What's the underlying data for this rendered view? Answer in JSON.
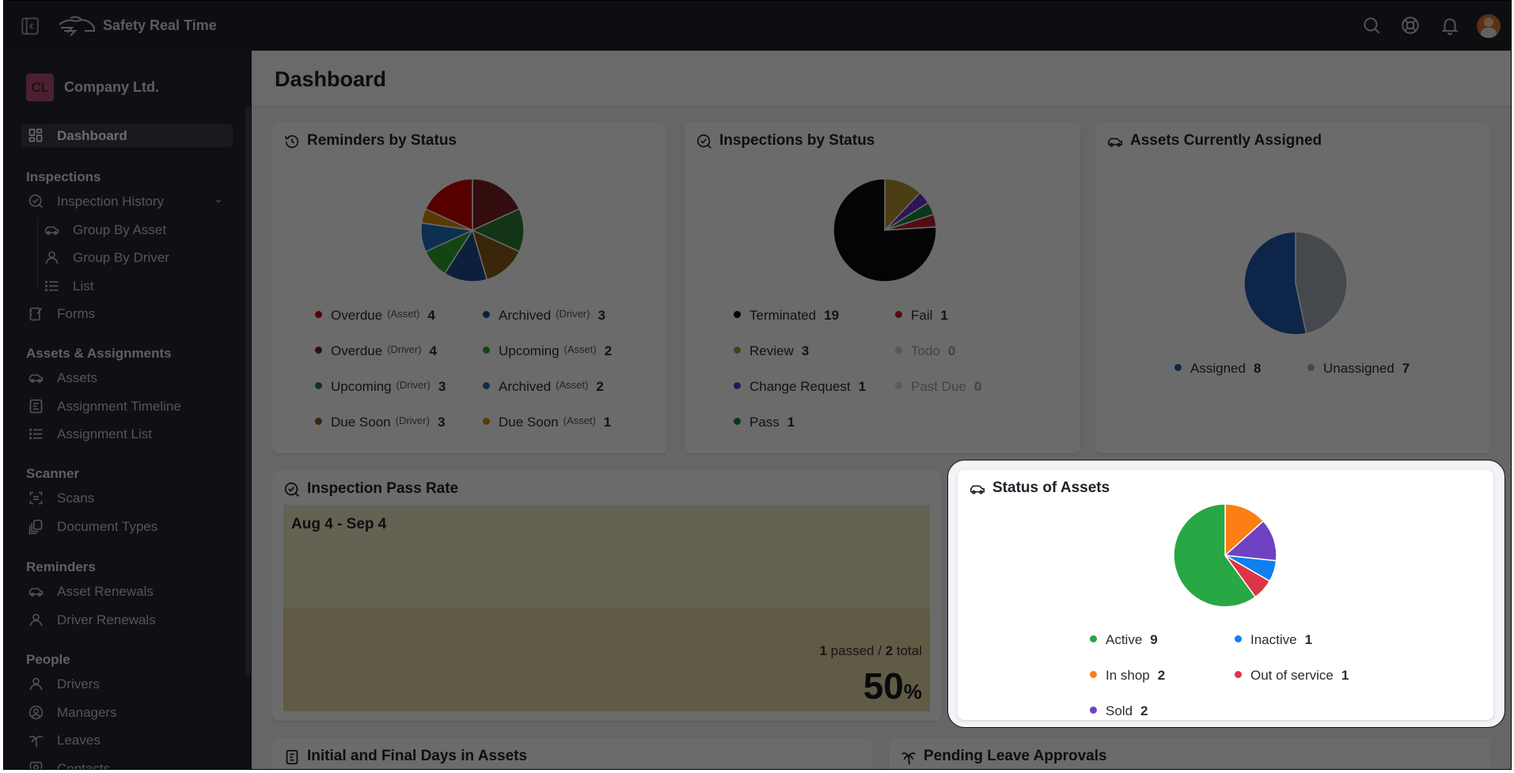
{
  "header": {
    "app_title": "Safety Real Time",
    "icons": [
      "sidebar-collapse-icon",
      "logo",
      "search-icon",
      "help-lifebuoy-icon",
      "bell-icon",
      "avatar"
    ]
  },
  "sidebar": {
    "company": {
      "initials": "CL",
      "name": "Company Ltd."
    },
    "dashboard": {
      "label": "Dashboard",
      "icon": "dashboard-grid-icon"
    },
    "sections": [
      {
        "heading": "Inspections",
        "items": [
          {
            "label": "Inspection History",
            "icon": "inspection-check-icon",
            "expandable": true
          },
          {
            "label": "Group By Asset",
            "icon": "car-icon",
            "sub": true
          },
          {
            "label": "Group By Driver",
            "icon": "user-icon",
            "sub": true
          },
          {
            "label": "List",
            "icon": "list-icon",
            "sub": true
          },
          {
            "label": "Forms",
            "icon": "form-edit-icon"
          }
        ]
      },
      {
        "heading": "Assets & Assignments",
        "items": [
          {
            "label": "Assets",
            "icon": "car-icon"
          },
          {
            "label": "Assignment Timeline",
            "icon": "timeline-icon"
          },
          {
            "label": "Assignment List",
            "icon": "list-icon"
          }
        ]
      },
      {
        "heading": "Scanner",
        "items": [
          {
            "label": "Scans",
            "icon": "scan-icon"
          },
          {
            "label": "Document Types",
            "icon": "documents-icon"
          }
        ]
      },
      {
        "heading": "Reminders",
        "items": [
          {
            "label": "Asset Renewals",
            "icon": "car-icon"
          },
          {
            "label": "Driver Renewals",
            "icon": "user-icon"
          }
        ]
      },
      {
        "heading": "People",
        "items": [
          {
            "label": "Drivers",
            "icon": "user-icon"
          },
          {
            "label": "Managers",
            "icon": "user-circle-icon"
          },
          {
            "label": "Leaves",
            "icon": "palm-tree-icon"
          },
          {
            "label": "Contacts",
            "icon": "contact-icon"
          }
        ]
      }
    ]
  },
  "main": {
    "title": "Dashboard",
    "pass_rate": {
      "title": "Inspection Pass Rate",
      "range": "Aug 4 - Sep 4",
      "passed": "1",
      "passed_label": "passed /",
      "total": "2",
      "total_label": "total",
      "percent": "50",
      "percent_sign": "%",
      "fill_fraction": 0.5
    },
    "bottom_cards": [
      "Initial and Final Days in Assets",
      "Pending Leave Approvals"
    ]
  },
  "chart_data": [
    {
      "type": "pie",
      "title": "Reminders by Status",
      "icon": "history-icon",
      "slices": [
        {
          "label": "Overdue",
          "qualifier": "(Asset)",
          "value": 4,
          "color": "#cc0000"
        },
        {
          "label": "Overdue",
          "qualifier": "(Driver)",
          "value": 4,
          "color": "#7a2020"
        },
        {
          "label": "Upcoming",
          "qualifier": "(Driver)",
          "value": 3,
          "color": "#2e7d32"
        },
        {
          "label": "Due Soon",
          "qualifier": "(Driver)",
          "value": 3,
          "color": "#8a5a16"
        },
        {
          "label": "Archived",
          "qualifier": "(Driver)",
          "value": 3,
          "color": "#1e4d8c"
        },
        {
          "label": "Upcoming",
          "qualifier": "(Asset)",
          "value": 2,
          "color": "#2ea52e"
        },
        {
          "label": "Archived",
          "qualifier": "(Asset)",
          "value": 2,
          "color": "#1c70c4"
        },
        {
          "label": "Due Soon",
          "qualifier": "(Asset)",
          "value": 1,
          "color": "#d48a0a"
        }
      ]
    },
    {
      "type": "pie",
      "title": "Inspections by Status",
      "icon": "inspection-check-icon",
      "slices": [
        {
          "label": "Terminated",
          "value": 19,
          "color": "#0a0a0a"
        },
        {
          "label": "Review",
          "value": 3,
          "color": "#b39430"
        },
        {
          "label": "Change Request",
          "value": 1,
          "color": "#6a2fcc"
        },
        {
          "label": "Pass",
          "value": 1,
          "color": "#148a3c"
        },
        {
          "label": "Fail",
          "value": 1,
          "color": "#c41f2a"
        },
        {
          "label": "Todo",
          "value": 0,
          "color": "#9a9a9a"
        },
        {
          "label": "Past Due",
          "value": 0,
          "color": "#d9966a"
        }
      ]
    },
    {
      "type": "pie",
      "title": "Assets Currently Assigned",
      "icon": "car-icon",
      "slices": [
        {
          "label": "Assigned",
          "value": 8,
          "color": "#2257b0"
        },
        {
          "label": "Unassigned",
          "value": 7,
          "color": "#a5abb4"
        }
      ]
    },
    {
      "type": "pie",
      "title": "Status of Assets",
      "icon": "car-icon",
      "highlighted": true,
      "slices": [
        {
          "label": "Active",
          "value": 9,
          "color": "#28a745"
        },
        {
          "label": "In shop",
          "value": 2,
          "color": "#fd7e14"
        },
        {
          "label": "Sold",
          "value": 2,
          "color": "#6f42c1"
        },
        {
          "label": "Inactive",
          "value": 1,
          "color": "#0d7ff0"
        },
        {
          "label": "Out of service",
          "value": 1,
          "color": "#dc3545"
        }
      ]
    }
  ]
}
